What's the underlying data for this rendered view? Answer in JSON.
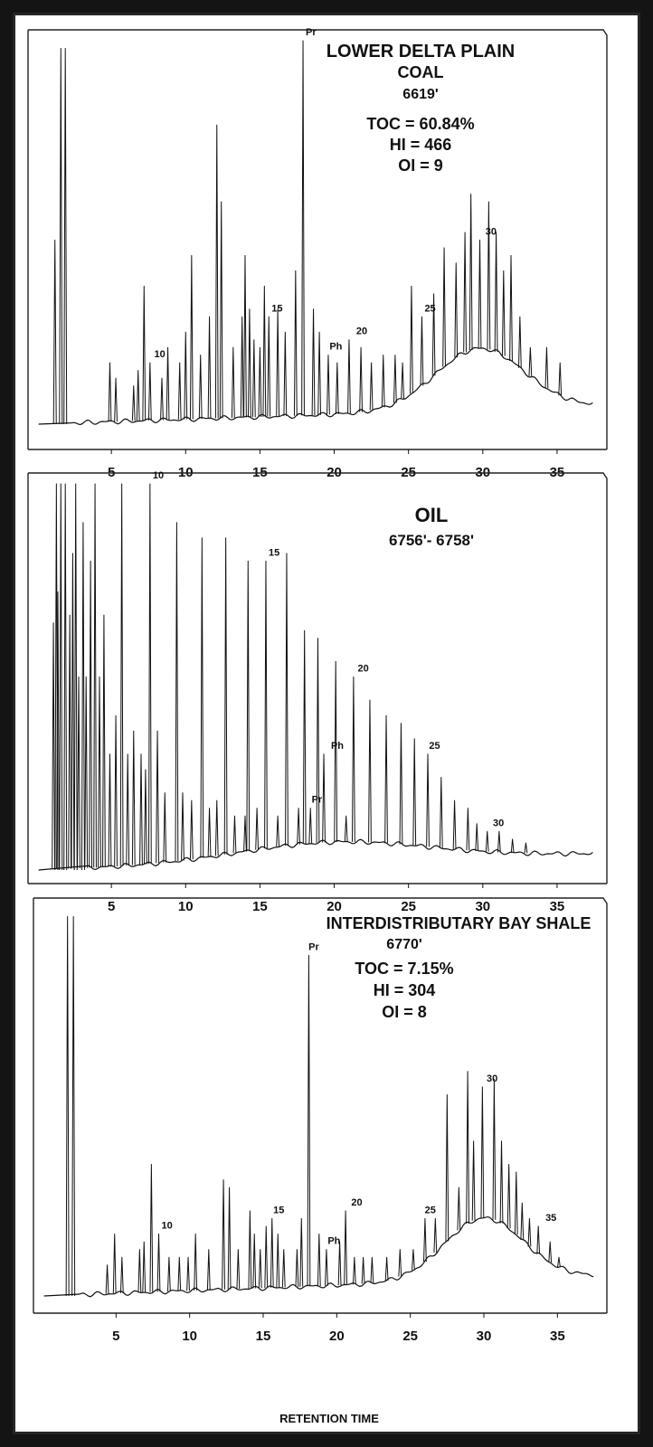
{
  "chart_data": [
    {
      "type": "line",
      "title": [
        "LOWER DELTA PLAIN",
        "COAL",
        "6619'",
        "TOC = 60.84%",
        "HI = 466",
        "OI = 9"
      ],
      "x_ticks": [
        5,
        10,
        15,
        20,
        25,
        30,
        35
      ],
      "xlim": [
        0,
        37.5
      ],
      "ylim": [
        0,
        100
      ],
      "solvent_peaks": [
        [
          1.2,
          48
        ],
        [
          1.6,
          98
        ],
        [
          1.9,
          98
        ]
      ],
      "peaks": [
        [
          4.9,
          16
        ],
        [
          5.3,
          12
        ],
        [
          6.5,
          10
        ],
        [
          6.8,
          14
        ],
        [
          7.2,
          36
        ],
        [
          7.6,
          16
        ],
        [
          8.4,
          12
        ],
        [
          8.8,
          20
        ],
        [
          9.6,
          16
        ],
        [
          10.0,
          24
        ],
        [
          10.4,
          44
        ],
        [
          11.0,
          18
        ],
        [
          11.6,
          28
        ],
        [
          12.1,
          78
        ],
        [
          12.4,
          58
        ],
        [
          13.2,
          20
        ],
        [
          13.8,
          28
        ],
        [
          14.0,
          44
        ],
        [
          14.3,
          30
        ],
        [
          14.6,
          22
        ],
        [
          15.0,
          20
        ],
        [
          15.3,
          36
        ],
        [
          15.6,
          28
        ],
        [
          16.2,
          30
        ],
        [
          16.7,
          24
        ],
        [
          17.4,
          40
        ],
        [
          17.9,
          100
        ],
        [
          18.6,
          30
        ],
        [
          19.0,
          24
        ],
        [
          19.6,
          18
        ],
        [
          20.2,
          16
        ],
        [
          21.0,
          22
        ],
        [
          21.8,
          20
        ],
        [
          22.5,
          16
        ],
        [
          23.3,
          18
        ],
        [
          24.1,
          18
        ],
        [
          24.6,
          16
        ],
        [
          25.2,
          36
        ],
        [
          25.9,
          28
        ],
        [
          26.7,
          34
        ],
        [
          27.4,
          46
        ],
        [
          28.2,
          42
        ],
        [
          28.8,
          50
        ],
        [
          29.2,
          60
        ],
        [
          29.8,
          48
        ],
        [
          30.4,
          58
        ],
        [
          30.9,
          50
        ],
        [
          31.4,
          40
        ],
        [
          31.9,
          44
        ],
        [
          32.5,
          28
        ],
        [
          33.2,
          20
        ],
        [
          34.3,
          20
        ],
        [
          35.2,
          16
        ]
      ],
      "peak_labels": [
        [
          "Pr",
          17.9
        ],
        [
          "10",
          7.7
        ],
        [
          "15",
          15.6
        ],
        [
          "Ph",
          19.5
        ],
        [
          "20",
          21.3
        ],
        [
          "25",
          25.9
        ],
        [
          "30",
          30.0
        ]
      ]
    },
    {
      "type": "line",
      "title": [
        "OIL",
        "6756'- 6758'"
      ],
      "x_ticks": [
        5,
        10,
        15,
        20,
        25,
        30,
        35
      ],
      "xlim": [
        0,
        37.5
      ],
      "ylim": [
        0,
        100
      ],
      "solvent_peaks": [
        [
          1.3,
          100
        ],
        [
          1.6,
          100
        ],
        [
          1.9,
          100
        ],
        [
          2.6,
          100
        ],
        [
          3.1,
          90
        ]
      ],
      "peaks": [
        [
          1.1,
          64
        ],
        [
          1.4,
          72
        ],
        [
          2.2,
          66
        ],
        [
          2.4,
          82
        ],
        [
          2.8,
          50
        ],
        [
          3.3,
          50
        ],
        [
          3.6,
          80
        ],
        [
          3.9,
          100
        ],
        [
          4.2,
          50
        ],
        [
          4.5,
          66
        ],
        [
          4.9,
          30
        ],
        [
          5.3,
          40
        ],
        [
          5.7,
          100
        ],
        [
          6.1,
          30
        ],
        [
          6.5,
          36
        ],
        [
          7.0,
          30
        ],
        [
          7.3,
          26
        ],
        [
          7.6,
          100
        ],
        [
          8.1,
          36
        ],
        [
          8.6,
          20
        ],
        [
          9.4,
          90
        ],
        [
          9.8,
          20
        ],
        [
          10.4,
          18
        ],
        [
          11.1,
          86
        ],
        [
          11.6,
          16
        ],
        [
          12.1,
          18
        ],
        [
          12.7,
          86
        ],
        [
          13.3,
          14
        ],
        [
          14.0,
          14
        ],
        [
          14.2,
          80
        ],
        [
          14.8,
          16
        ],
        [
          15.4,
          80
        ],
        [
          16.2,
          14
        ],
        [
          16.8,
          82
        ],
        [
          17.6,
          16
        ],
        [
          18.0,
          62
        ],
        [
          18.4,
          16
        ],
        [
          18.9,
          60
        ],
        [
          19.3,
          30
        ],
        [
          20.1,
          54
        ],
        [
          20.8,
          14
        ],
        [
          21.3,
          50
        ],
        [
          22.4,
          44
        ],
        [
          23.5,
          40
        ],
        [
          24.5,
          38
        ],
        [
          25.4,
          34
        ],
        [
          26.3,
          30
        ],
        [
          27.2,
          24
        ],
        [
          28.1,
          18
        ],
        [
          29.0,
          16
        ],
        [
          29.6,
          12
        ],
        [
          30.3,
          10
        ],
        [
          31.1,
          10
        ],
        [
          32.0,
          8
        ],
        [
          32.9,
          7
        ]
      ],
      "peak_labels": [
        [
          "10",
          7.6
        ],
        [
          "15",
          15.4
        ],
        [
          "Pr",
          18.3
        ],
        [
          "Ph",
          19.6
        ],
        [
          "20",
          21.4
        ],
        [
          "25",
          26.2
        ],
        [
          "30",
          30.5
        ]
      ]
    },
    {
      "type": "line",
      "title": [
        "INTERDISTRIBUTARY BAY SHALE",
        "6770'",
        "TOC = 7.15%",
        "HI = 304",
        "OI = 8"
      ],
      "x_ticks": [
        5,
        10,
        15,
        20,
        25,
        30,
        35
      ],
      "xlim": [
        0,
        37.5
      ],
      "ylim": [
        0,
        100
      ],
      "solvent_peaks": [
        [
          1.7,
          98
        ],
        [
          2.1,
          98
        ]
      ],
      "peaks": [
        [
          4.4,
          8
        ],
        [
          4.9,
          16
        ],
        [
          5.4,
          10
        ],
        [
          6.6,
          12
        ],
        [
          6.9,
          14
        ],
        [
          7.4,
          34
        ],
        [
          7.9,
          16
        ],
        [
          8.6,
          10
        ],
        [
          9.3,
          10
        ],
        [
          9.9,
          10
        ],
        [
          10.4,
          16
        ],
        [
          11.3,
          12
        ],
        [
          12.3,
          30
        ],
        [
          12.7,
          28
        ],
        [
          13.3,
          12
        ],
        [
          14.1,
          22
        ],
        [
          14.4,
          16
        ],
        [
          14.8,
          12
        ],
        [
          15.2,
          18
        ],
        [
          15.6,
          20
        ],
        [
          16.0,
          16
        ],
        [
          16.4,
          12
        ],
        [
          17.3,
          12
        ],
        [
          17.6,
          20
        ],
        [
          18.1,
          88
        ],
        [
          18.8,
          16
        ],
        [
          19.3,
          12
        ],
        [
          20.2,
          14
        ],
        [
          20.6,
          22
        ],
        [
          21.2,
          10
        ],
        [
          21.8,
          10
        ],
        [
          22.4,
          10
        ],
        [
          23.4,
          10
        ],
        [
          24.3,
          12
        ],
        [
          25.2,
          12
        ],
        [
          26.0,
          20
        ],
        [
          26.7,
          20
        ],
        [
          27.5,
          52
        ],
        [
          28.3,
          28
        ],
        [
          28.9,
          58
        ],
        [
          29.3,
          40
        ],
        [
          29.9,
          54
        ],
        [
          30.7,
          56
        ],
        [
          31.2,
          40
        ],
        [
          31.7,
          34
        ],
        [
          32.2,
          32
        ],
        [
          32.6,
          24
        ],
        [
          33.1,
          20
        ],
        [
          33.7,
          18
        ],
        [
          34.5,
          14
        ],
        [
          35.1,
          10
        ]
      ],
      "peak_labels": [
        [
          "Pr",
          17.9
        ],
        [
          "10",
          7.9
        ],
        [
          "15",
          15.5
        ],
        [
          "Ph",
          19.2
        ],
        [
          "20",
          20.8
        ],
        [
          "25",
          25.8
        ],
        [
          "30",
          30.0
        ],
        [
          "35",
          34.0
        ]
      ]
    }
  ],
  "x_axis_title": "RETENTION TIME"
}
